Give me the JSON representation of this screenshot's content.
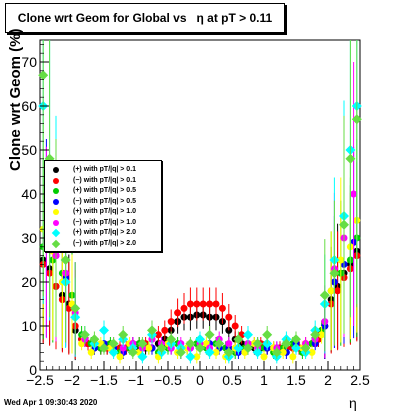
{
  "title": "Clone wrt Geom for Global vs   η at pT > 0.11",
  "footer": "Wed Apr  1 09:30:43 2020",
  "chart_data": {
    "type": "scatter",
    "title": "Clone wrt Geom for Global vs   η at pT > 0.11",
    "xlabel": "η",
    "ylabel": "Clone wrt Geom (%)",
    "xlim": [
      -2.5,
      2.5
    ],
    "ylim": [
      0,
      75
    ],
    "x_ticks": [
      "−2.5",
      "−2",
      "−1.5",
      "−1",
      "−0.5",
      "0",
      "0.5",
      "1",
      "1.5",
      "2",
      "2.5"
    ],
    "y_ticks": [
      "0",
      "10",
      "20",
      "30",
      "40",
      "50",
      "60",
      "70"
    ],
    "legend_position": "left-middle",
    "series": [
      {
        "name": "(+) with pT/|q| > 0.1",
        "color": "#000000",
        "marker": "circle",
        "x": [
          -2.45,
          -2.35,
          -2.25,
          -2.15,
          -2.05,
          -1.95,
          -1.85,
          -1.75,
          -1.65,
          -1.55,
          -1.45,
          -1.35,
          -1.25,
          -1.15,
          -1.05,
          -0.95,
          -0.85,
          -0.75,
          -0.65,
          -0.55,
          -0.45,
          -0.35,
          -0.25,
          -0.15,
          -0.05,
          0.05,
          0.15,
          0.25,
          0.35,
          0.45,
          0.55,
          0.65,
          0.75,
          0.85,
          0.95,
          1.05,
          1.15,
          1.25,
          1.35,
          1.45,
          1.55,
          1.65,
          1.75,
          1.85,
          1.95,
          2.05,
          2.15,
          2.25,
          2.35,
          2.45
        ],
        "y": [
          25,
          23,
          19,
          17,
          15,
          9,
          7,
          6,
          5,
          5,
          5,
          5,
          5,
          5,
          5,
          5,
          5,
          5,
          6,
          7,
          9,
          11,
          12,
          12,
          12.5,
          12.5,
          12,
          12,
          11,
          9,
          7,
          6,
          5,
          5,
          5,
          5,
          5,
          5,
          5,
          5,
          5,
          5,
          6,
          7,
          10,
          16,
          19,
          22,
          24,
          27
        ]
      },
      {
        "name": "(−) with pT/|q| > 0.1",
        "color": "#ff0000",
        "marker": "circle",
        "x": [
          -2.45,
          -2.35,
          -2.25,
          -2.15,
          -2.05,
          -1.95,
          -1.85,
          -1.75,
          -1.65,
          -1.55,
          -1.45,
          -1.35,
          -1.25,
          -1.15,
          -1.05,
          -0.95,
          -0.85,
          -0.75,
          -0.65,
          -0.55,
          -0.45,
          -0.35,
          -0.25,
          -0.15,
          -0.05,
          0.05,
          0.15,
          0.25,
          0.35,
          0.45,
          0.55,
          0.65,
          0.75,
          0.85,
          0.95,
          1.05,
          1.15,
          1.25,
          1.35,
          1.45,
          1.55,
          1.65,
          1.75,
          1.85,
          1.95,
          2.05,
          2.15,
          2.25,
          2.35,
          2.45
        ],
        "y": [
          24,
          22,
          19,
          16,
          14,
          10,
          7,
          6,
          6,
          5,
          5,
          5,
          5,
          5,
          6,
          6,
          6,
          7,
          8,
          9,
          11,
          13,
          14,
          15,
          15,
          15,
          15,
          15,
          14,
          12,
          10,
          8,
          6,
          6,
          6,
          5,
          5,
          5,
          5,
          5,
          5,
          6,
          6,
          7,
          10,
          15,
          18,
          21,
          23,
          26
        ]
      },
      {
        "name": "(+) with pT/|q| > 0.5",
        "color": "#00cc00",
        "marker": "circle",
        "x": [
          -2.45,
          -2.3,
          -2.15,
          -2.0,
          -1.85,
          -1.7,
          -1.55,
          -1.4,
          -1.25,
          -1.1,
          -0.95,
          -0.8,
          -0.65,
          -0.5,
          -0.35,
          -0.2,
          -0.05,
          0.1,
          0.25,
          0.4,
          0.55,
          0.7,
          0.85,
          1.0,
          1.15,
          1.3,
          1.45,
          1.6,
          1.75,
          1.9,
          2.05,
          2.2,
          2.35,
          2.45
        ],
        "y": [
          28,
          25,
          22,
          17,
          8,
          6,
          5,
          6,
          4,
          5,
          6,
          5,
          4,
          5,
          6,
          5,
          6,
          5,
          6,
          5,
          4,
          5,
          6,
          5,
          4,
          5,
          6,
          4,
          6,
          9,
          18,
          22,
          25,
          30
        ]
      },
      {
        "name": "(−) with pT/|q| > 0.5",
        "color": "#0000ff",
        "marker": "circle",
        "x": [
          -2.4,
          -2.25,
          -2.1,
          -1.95,
          -1.8,
          -1.65,
          -1.5,
          -1.35,
          -1.2,
          -1.05,
          -0.9,
          -0.75,
          -0.6,
          -0.45,
          -0.3,
          -0.15,
          0.0,
          0.15,
          0.3,
          0.45,
          0.6,
          0.75,
          0.9,
          1.05,
          1.2,
          1.35,
          1.5,
          1.65,
          1.8,
          1.95,
          2.1,
          2.25,
          2.4
        ],
        "y": [
          30,
          26,
          21,
          14,
          7,
          5,
          6,
          5,
          4,
          6,
          5,
          5,
          6,
          5,
          4,
          5,
          5,
          6,
          5,
          5,
          4,
          5,
          6,
          5,
          5,
          4,
          6,
          5,
          6,
          10,
          20,
          24,
          29
        ]
      },
      {
        "name": "(+) with pT/|q| > 1.0",
        "color": "#ffff00",
        "marker": "circle",
        "x": [
          -2.45,
          -2.3,
          -2.15,
          -2.0,
          -1.85,
          -1.7,
          -1.55,
          -1.4,
          -1.25,
          -1.1,
          -0.95,
          -0.8,
          -0.65,
          -0.5,
          -0.35,
          -0.2,
          -0.05,
          0.1,
          0.25,
          0.4,
          0.55,
          0.7,
          0.85,
          1.0,
          1.15,
          1.3,
          1.45,
          1.6,
          1.75,
          1.9,
          2.05,
          2.2,
          2.35,
          2.45
        ],
        "y": [
          32,
          27,
          20,
          15,
          6,
          4,
          6,
          5,
          3,
          6,
          4,
          5,
          3,
          6,
          4,
          5,
          3,
          6,
          4,
          3,
          5,
          4,
          6,
          3,
          5,
          4,
          3,
          5,
          4,
          8,
          18,
          25,
          28,
          34
        ]
      },
      {
        "name": "(−) with pT/|q| > 1.0",
        "color": "#ff00ff",
        "marker": "circle",
        "x": [
          -2.4,
          -2.25,
          -2.1,
          -1.95,
          -1.8,
          -1.65,
          -1.5,
          -1.35,
          -1.2,
          -1.05,
          -0.9,
          -0.75,
          -0.6,
          -0.45,
          -0.3,
          -0.15,
          0.0,
          0.15,
          0.3,
          0.45,
          0.6,
          0.75,
          0.9,
          1.05,
          1.2,
          1.35,
          1.5,
          1.65,
          1.8,
          1.95,
          2.1,
          2.25,
          2.4
        ],
        "y": [
          29,
          26,
          22,
          13,
          7,
          6,
          5,
          6,
          5,
          6,
          5,
          7,
          6,
          5,
          6,
          5,
          6,
          5,
          7,
          6,
          5,
          6,
          5,
          6,
          5,
          6,
          5,
          6,
          7,
          11,
          23,
          30,
          40
        ]
      },
      {
        "name": "(+) with pT/|q| > 2.0",
        "color": "#00ffff",
        "marker": "diamond",
        "x": [
          -2.45,
          -2.35,
          -2.25,
          -2.1,
          -1.95,
          -1.8,
          -1.65,
          -1.5,
          -1.35,
          -1.2,
          -1.05,
          -0.9,
          -0.75,
          -0.6,
          -0.45,
          -0.3,
          -0.15,
          0.0,
          0.15,
          0.3,
          0.45,
          0.6,
          0.75,
          0.9,
          1.05,
          1.2,
          1.35,
          1.5,
          1.65,
          1.8,
          1.95,
          2.1,
          2.25,
          2.35,
          2.45
        ],
        "y": [
          60,
          45,
          33,
          20,
          12,
          8,
          6,
          9,
          4,
          7,
          5,
          3,
          8,
          4,
          6,
          5,
          3,
          7,
          4,
          6,
          3,
          5,
          8,
          4,
          6,
          3,
          7,
          5,
          4,
          9,
          15,
          25,
          35,
          50,
          60
        ]
      },
      {
        "name": "(−) with pT/|q| > 2.0",
        "color": "#66dd44",
        "marker": "diamond",
        "x": [
          -2.45,
          -2.35,
          -2.25,
          -2.1,
          -1.95,
          -1.8,
          -1.65,
          -1.5,
          -1.35,
          -1.2,
          -1.05,
          -0.9,
          -0.75,
          -0.6,
          -0.45,
          -0.3,
          -0.15,
          0.0,
          0.15,
          0.3,
          0.45,
          0.6,
          0.75,
          0.9,
          1.05,
          1.2,
          1.35,
          1.5,
          1.65,
          1.8,
          1.95,
          2.1,
          2.25,
          2.35,
          2.45
        ],
        "y": [
          67,
          48,
          30,
          25,
          14,
          8,
          7,
          5,
          6,
          8,
          4,
          6,
          9,
          5,
          7,
          4,
          6,
          5,
          8,
          6,
          4,
          7,
          5,
          6,
          8,
          4,
          6,
          7,
          5,
          8,
          17,
          22,
          33,
          48,
          57
        ]
      }
    ]
  }
}
